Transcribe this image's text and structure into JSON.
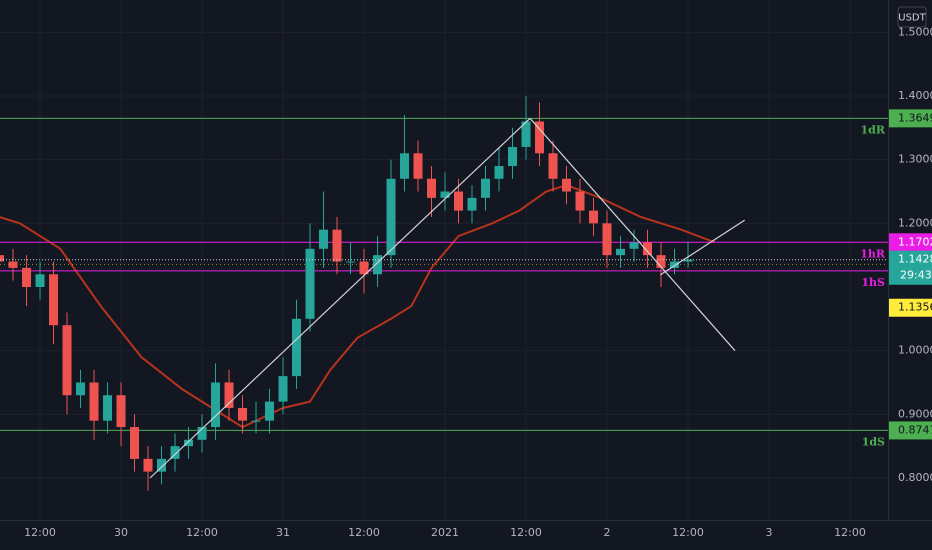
{
  "chart_data": {
    "type": "candlestick",
    "currency": "USDT",
    "x": [
      -6,
      -4,
      -2,
      0,
      2,
      4,
      6,
      8,
      10,
      12,
      14,
      16,
      18,
      20,
      22,
      24,
      26,
      28,
      30,
      32,
      34,
      36,
      38,
      40,
      42,
      44,
      46,
      48,
      50,
      52,
      54,
      56,
      58,
      60,
      62,
      64,
      66,
      68,
      70,
      72,
      74,
      76,
      78,
      80,
      82,
      84,
      86,
      88,
      90,
      92,
      94,
      96
    ],
    "open": [
      1.15,
      1.14,
      1.13,
      1.1,
      1.12,
      1.04,
      0.93,
      0.95,
      0.89,
      0.93,
      0.88,
      0.83,
      0.81,
      0.83,
      0.85,
      0.86,
      0.88,
      0.95,
      0.91,
      0.89,
      0.89,
      0.92,
      0.96,
      1.05,
      1.16,
      1.19,
      1.14,
      1.14,
      1.12,
      1.15,
      1.27,
      1.31,
      1.27,
      1.24,
      1.25,
      1.22,
      1.24,
      1.27,
      1.29,
      1.32,
      1.36,
      1.31,
      1.27,
      1.25,
      1.22,
      1.2,
      1.15,
      1.16,
      1.17,
      1.15,
      1.13,
      1.14
    ],
    "high": [
      1.17,
      1.16,
      1.15,
      1.14,
      1.14,
      1.06,
      0.97,
      0.97,
      0.95,
      0.95,
      0.9,
      0.85,
      0.85,
      0.87,
      0.88,
      0.9,
      0.98,
      0.97,
      0.93,
      0.92,
      0.94,
      0.99,
      1.08,
      1.2,
      1.25,
      1.21,
      1.17,
      1.16,
      1.18,
      1.3,
      1.37,
      1.33,
      1.29,
      1.28,
      1.27,
      1.26,
      1.29,
      1.32,
      1.35,
      1.4,
      1.39,
      1.33,
      1.29,
      1.27,
      1.24,
      1.22,
      1.18,
      1.19,
      1.19,
      1.17,
      1.16,
      1.17
    ],
    "low": [
      1.12,
      1.11,
      1.07,
      1.08,
      1.01,
      0.9,
      0.91,
      0.86,
      0.87,
      0.85,
      0.81,
      0.78,
      0.79,
      0.81,
      0.83,
      0.84,
      0.86,
      0.89,
      0.87,
      0.87,
      0.87,
      0.9,
      0.94,
      1.03,
      1.13,
      1.12,
      1.12,
      1.09,
      1.1,
      1.13,
      1.25,
      1.25,
      1.21,
      1.22,
      1.2,
      1.2,
      1.22,
      1.25,
      1.27,
      1.3,
      1.29,
      1.25,
      1.23,
      1.2,
      1.18,
      1.13,
      1.13,
      1.14,
      1.13,
      1.1,
      1.12,
      1.13
    ],
    "close": [
      1.14,
      1.13,
      1.1,
      1.12,
      1.04,
      0.93,
      0.95,
      0.89,
      0.93,
      0.88,
      0.83,
      0.81,
      0.83,
      0.85,
      0.86,
      0.88,
      0.95,
      0.91,
      0.89,
      0.89,
      0.92,
      0.96,
      1.05,
      1.16,
      1.19,
      1.14,
      1.14,
      1.12,
      1.15,
      1.27,
      1.31,
      1.27,
      1.24,
      1.25,
      1.22,
      1.24,
      1.27,
      1.29,
      1.32,
      1.36,
      1.31,
      1.27,
      1.25,
      1.22,
      1.2,
      1.15,
      1.16,
      1.17,
      1.15,
      1.13,
      1.14,
      1.1428
    ],
    "up_color": "#26a69a",
    "down_color": "#ef5350",
    "moving_average": {
      "color": "#b8321c",
      "x": [
        -6,
        -3,
        3,
        9,
        15,
        21,
        25.5,
        30,
        36,
        40,
        43,
        47,
        52,
        55,
        58,
        62,
        67,
        71,
        75,
        78,
        83,
        89,
        95,
        100
      ],
      "values": [
        1.21,
        1.2,
        1.16,
        1.07,
        0.99,
        0.94,
        0.91,
        0.88,
        0.91,
        0.92,
        0.97,
        1.02,
        1.05,
        1.07,
        1.13,
        1.18,
        1.2,
        1.22,
        1.25,
        1.26,
        1.24,
        1.21,
        1.19,
        1.17
      ]
    },
    "trend_lines": [
      {
        "color": "#d1d4dc",
        "x": [
          16.3,
          72.6
        ],
        "values": [
          0.8,
          1.365
        ]
      },
      {
        "color": "#d1d4dc",
        "x": [
          72.6,
          102.96
        ],
        "values": [
          1.365,
          1.0
        ]
      },
      {
        "color": "#d1d4dc",
        "x": [
          91.9,
          104.4
        ],
        "values": [
          1.119,
          1.205
        ]
      }
    ],
    "levels": [
      {
        "value": 1.3649,
        "color": "#4caf50",
        "label": "1dR"
      },
      {
        "value": 1.1702,
        "color": "#e91ee6",
        "label": "1hR"
      },
      {
        "value": 1.1253,
        "color": "#e91ee6",
        "label": "1hS"
      },
      {
        "value": 0.8747,
        "color": "#4caf50",
        "label": "1dS"
      }
    ],
    "last_price": {
      "value": 1.1428,
      "color": "#26a69a",
      "countdown": "29:43"
    },
    "marker_price": {
      "value": 1.1356,
      "color": "#ffeb3b"
    },
    "xlim": [
      -5.93,
      125.63
    ],
    "ylim": [
      0.734,
      1.5508
    ],
    "xticks": [
      {
        "value": 0,
        "label": "12:00"
      },
      {
        "value": 12,
        "label": "30"
      },
      {
        "value": 24,
        "label": "12:00"
      },
      {
        "value": 36,
        "label": "31"
      },
      {
        "value": 48,
        "label": "12:00"
      },
      {
        "value": 60,
        "label": "2021"
      },
      {
        "value": 72,
        "label": "12:00"
      },
      {
        "value": 84,
        "label": "2"
      },
      {
        "value": 96,
        "label": "12:00"
      },
      {
        "value": 108,
        "label": "3"
      },
      {
        "value": 120,
        "label": "12:00"
      }
    ],
    "yticks": [
      {
        "value": 1.5,
        "label": "1.5000"
      },
      {
        "value": 1.4,
        "label": "1.4000"
      },
      {
        "value": 1.3,
        "label": "1.3000"
      },
      {
        "value": 1.2,
        "label": "1.2000"
      },
      {
        "value": 1.0,
        "label": "1.0000"
      },
      {
        "value": 0.9,
        "label": "0.9000"
      },
      {
        "value": 0.8,
        "label": "0.8000"
      }
    ],
    "grid": true
  }
}
